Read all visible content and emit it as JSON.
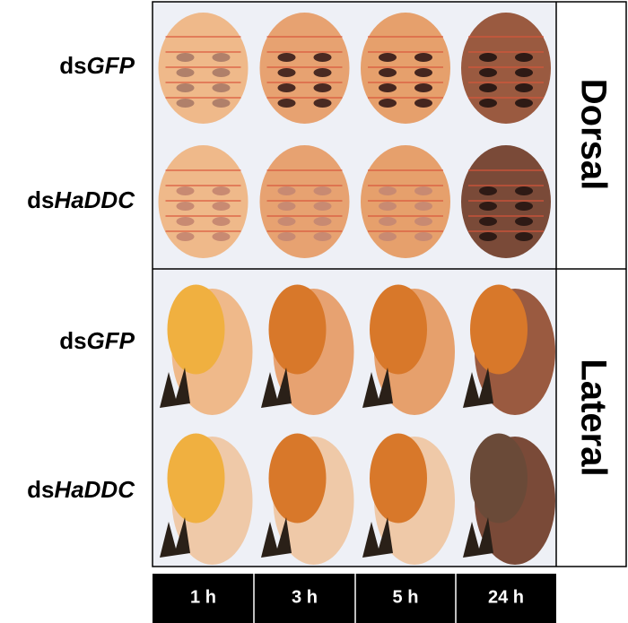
{
  "rows": [
    {
      "prefix": "ds",
      "gene": "GFP"
    },
    {
      "prefix": "ds",
      "gene": "HaDDC"
    },
    {
      "prefix": "ds",
      "gene": "GFP"
    },
    {
      "prefix": "ds",
      "gene": "HaDDC"
    }
  ],
  "views": [
    "Dorsal",
    "Lateral"
  ],
  "timepoints": [
    "1 h",
    "3 h",
    "5 h",
    "24 h"
  ]
}
